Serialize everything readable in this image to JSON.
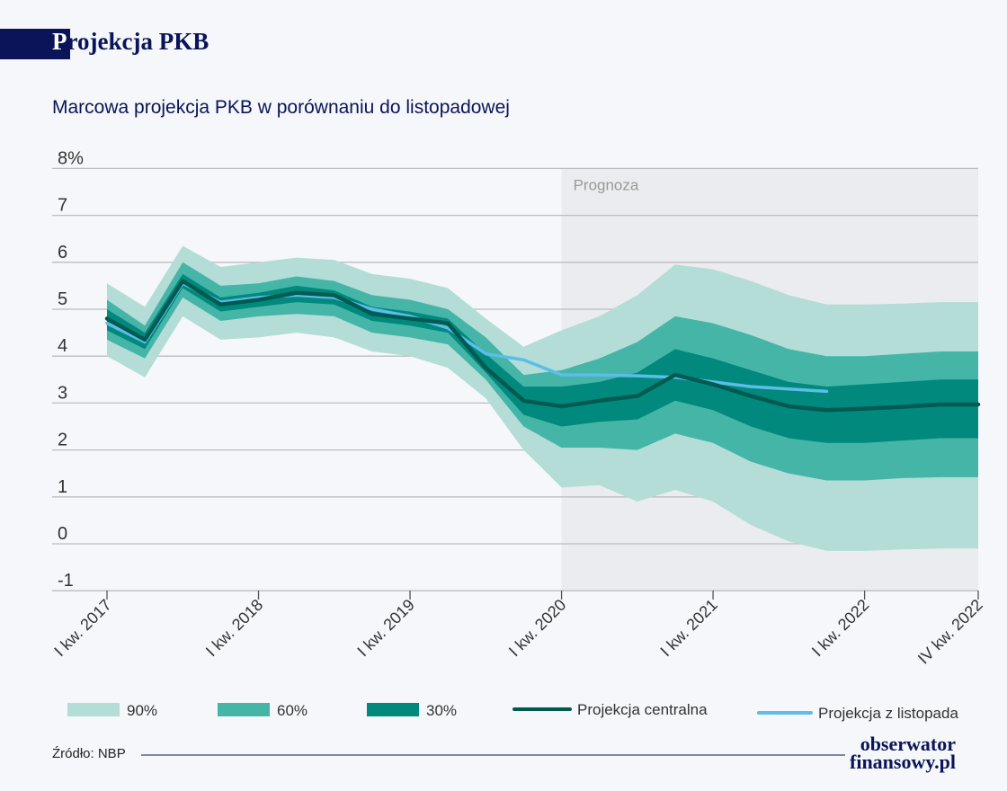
{
  "title": "Projekcja PKB",
  "title_first_letter": "P",
  "title_rest": "rojekcja PKB",
  "subtitle": "Marcowa projekcja PKB w porównaniu do listopadowej",
  "source": "Źródło: NBP",
  "logo": {
    "line1": "obserwator",
    "line2": "finansowy.pl"
  },
  "chart_data": {
    "type": "area",
    "forecast_label": "Prognoza",
    "forecast_start": "I kw. 2020",
    "ylim": [
      -1,
      8
    ],
    "y_ticks": [
      "8%",
      "7",
      "6",
      "5",
      "4",
      "3",
      "2",
      "1",
      "0",
      "-1"
    ],
    "x_ticks": [
      "I kw. 2017",
      "I kw. 2018",
      "I kw. 2019",
      "I kw. 2020",
      "I kw. 2021",
      "I kw. 2022",
      "IV kw. 2022"
    ],
    "quarters": [
      "2017Q1",
      "2017Q2",
      "2017Q3",
      "2017Q4",
      "2018Q1",
      "2018Q2",
      "2018Q3",
      "2018Q4",
      "2019Q1",
      "2019Q2",
      "2019Q3",
      "2019Q4",
      "2020Q1",
      "2020Q2",
      "2020Q3",
      "2020Q4",
      "2021Q1",
      "2021Q2",
      "2021Q3",
      "2021Q4",
      "2022Q1",
      "2022Q2",
      "2022Q3",
      "2022Q4"
    ],
    "grid": true,
    "legend_placement": "bottom",
    "colors": {
      "band90": "#b3ddd6",
      "band60": "#45b5a8",
      "band30": "#00897c",
      "central": "#005a51",
      "november": "#5cbde9",
      "forecast_bg": "#ebecef"
    },
    "bands": [
      {
        "name": "90%",
        "lower": [
          4.0,
          3.55,
          4.85,
          4.35,
          4.4,
          4.5,
          4.4,
          4.1,
          4.0,
          3.75,
          3.1,
          2.0,
          1.2,
          1.25,
          0.9,
          1.15,
          0.9,
          0.4,
          0.05,
          -0.15,
          -0.15,
          -0.12,
          -0.1,
          -0.1
        ],
        "upper": [
          5.55,
          5.05,
          6.35,
          5.9,
          6.0,
          6.1,
          6.05,
          5.75,
          5.65,
          5.45,
          4.8,
          4.2,
          4.55,
          4.85,
          5.3,
          5.95,
          5.85,
          5.6,
          5.3,
          5.1,
          5.1,
          5.12,
          5.15,
          5.15
        ]
      },
      {
        "name": "60%",
        "lower": [
          4.35,
          3.95,
          5.25,
          4.75,
          4.85,
          4.9,
          4.85,
          4.5,
          4.4,
          4.25,
          3.5,
          2.5,
          2.05,
          2.05,
          2.0,
          2.35,
          2.15,
          1.75,
          1.5,
          1.35,
          1.35,
          1.4,
          1.42,
          1.42
        ],
        "upper": [
          5.2,
          4.65,
          6.0,
          5.5,
          5.55,
          5.7,
          5.6,
          5.3,
          5.2,
          5.0,
          4.4,
          3.6,
          3.7,
          3.95,
          4.3,
          4.85,
          4.7,
          4.45,
          4.15,
          4.0,
          4.0,
          4.05,
          4.1,
          4.1
        ]
      },
      {
        "name": "30%",
        "lower": [
          4.55,
          4.15,
          5.45,
          4.95,
          5.05,
          5.15,
          5.1,
          4.75,
          4.65,
          4.5,
          3.65,
          2.75,
          2.5,
          2.6,
          2.65,
          3.05,
          2.85,
          2.5,
          2.25,
          2.15,
          2.15,
          2.2,
          2.25,
          2.25
        ],
        "upper": [
          5.0,
          4.5,
          5.75,
          5.25,
          5.35,
          5.5,
          5.4,
          5.05,
          4.95,
          4.8,
          4.05,
          3.35,
          3.35,
          3.45,
          3.65,
          4.15,
          3.95,
          3.7,
          3.45,
          3.35,
          3.4,
          3.45,
          3.5,
          3.5
        ]
      }
    ],
    "series": [
      {
        "name": "Projekcja centralna",
        "values": [
          4.8,
          4.35,
          5.6,
          5.1,
          5.2,
          5.35,
          5.3,
          4.9,
          4.8,
          4.7,
          3.75,
          3.05,
          2.93,
          3.05,
          3.15,
          3.6,
          3.4,
          3.15,
          2.93,
          2.85,
          2.88,
          2.92,
          2.97,
          2.97
        ]
      },
      {
        "name": "Projekcja z listopada",
        "values": [
          4.7,
          4.3,
          5.55,
          5.15,
          5.25,
          5.3,
          5.25,
          5.0,
          4.85,
          4.6,
          4.05,
          3.92,
          3.6,
          3.6,
          3.58,
          3.55,
          3.45,
          3.35,
          3.3,
          3.25,
          null,
          null,
          null,
          null
        ]
      }
    ]
  }
}
